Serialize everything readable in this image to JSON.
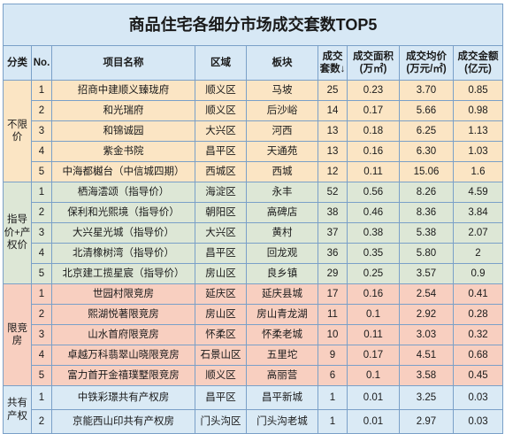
{
  "title": "商品住宅各细分市场成交套数TOP5",
  "headers": {
    "category": "分类",
    "no": "No.",
    "project": "项目名称",
    "district": "区域",
    "block": "板块",
    "units": "成交套数↓",
    "area": "成交面积(万㎡)",
    "avg_price": "成交均价(万元/㎡)",
    "amount": "成交金额(亿元)"
  },
  "groups": [
    {
      "category": "不限价",
      "rows": [
        {
          "no": "1",
          "project": "招商中建顺义臻珑府",
          "district": "顺义区",
          "block": "马坡",
          "units": "25",
          "area": "0.23",
          "avg_price": "3.70",
          "amount": "0.85"
        },
        {
          "no": "2",
          "project": "和光瑞府",
          "district": "顺义区",
          "block": "后沙峪",
          "units": "14",
          "area": "0.17",
          "avg_price": "5.66",
          "amount": "0.98"
        },
        {
          "no": "3",
          "project": "和锦诚园",
          "district": "大兴区",
          "block": "河西",
          "units": "13",
          "area": "0.18",
          "avg_price": "6.25",
          "amount": "1.13"
        },
        {
          "no": "4",
          "project": "紫金书院",
          "district": "昌平区",
          "block": "天通苑",
          "units": "13",
          "area": "0.16",
          "avg_price": "6.30",
          "amount": "1.03"
        },
        {
          "no": "5",
          "project": "中海都樾台（中信城四期）",
          "district": "西城区",
          "block": "西城",
          "units": "12",
          "area": "0.11",
          "avg_price": "15.06",
          "amount": "1.6"
        }
      ]
    },
    {
      "category": "指导价+产权价",
      "rows": [
        {
          "no": "1",
          "project": "栖海澐颂（指导价）",
          "district": "海淀区",
          "block": "永丰",
          "units": "52",
          "area": "0.56",
          "avg_price": "8.26",
          "amount": "4.59"
        },
        {
          "no": "2",
          "project": "保利和光熙境（指导价）",
          "district": "朝阳区",
          "block": "高碑店",
          "units": "38",
          "area": "0.46",
          "avg_price": "8.36",
          "amount": "3.84"
        },
        {
          "no": "3",
          "project": "大兴星光城（指导价）",
          "district": "大兴区",
          "block": "黄村",
          "units": "37",
          "area": "0.38",
          "avg_price": "5.38",
          "amount": "2.07"
        },
        {
          "no": "4",
          "project": "北清橡树湾（指导价）",
          "district": "昌平区",
          "block": "回龙观",
          "units": "36",
          "area": "0.35",
          "avg_price": "5.80",
          "amount": "2"
        },
        {
          "no": "5",
          "project": "北京建工揽星宸（指导价）",
          "district": "房山区",
          "block": "良乡镇",
          "units": "29",
          "area": "0.25",
          "avg_price": "3.57",
          "amount": "0.9"
        }
      ]
    },
    {
      "category": "限竞房",
      "rows": [
        {
          "no": "1",
          "project": "世园村限竞房",
          "district": "延庆区",
          "block": "延庆县城",
          "units": "17",
          "area": "0.16",
          "avg_price": "2.54",
          "amount": "0.41"
        },
        {
          "no": "2",
          "project": "熙湖悦著限竞房",
          "district": "房山区",
          "block": "房山青龙湖",
          "units": "11",
          "area": "0.1",
          "avg_price": "2.92",
          "amount": "0.28"
        },
        {
          "no": "3",
          "project": "山水首府限竞房",
          "district": "怀柔区",
          "block": "怀柔老城",
          "units": "10",
          "area": "0.11",
          "avg_price": "3.03",
          "amount": "0.32"
        },
        {
          "no": "4",
          "project": "卓越万科翡翠山晓限竞房",
          "district": "石景山区",
          "block": "五里坨",
          "units": "9",
          "area": "0.17",
          "avg_price": "4.51",
          "amount": "0.68"
        },
        {
          "no": "5",
          "project": "富力首开金禧璞墅限竞房",
          "district": "顺义区",
          "block": "高丽营",
          "units": "6",
          "area": "0.1",
          "avg_price": "3.58",
          "amount": "0.45"
        }
      ]
    },
    {
      "category": "共有产权",
      "rows": [
        {
          "no": "1",
          "project": "中铁彩璟共有产权房",
          "district": "昌平区",
          "block": "昌平新城",
          "units": "1",
          "area": "0.01",
          "avg_price": "3.25",
          "amount": "0.03"
        },
        {
          "no": "2",
          "project": "京能西山印共有产权房",
          "district": "门头沟区",
          "block": "门头沟老城",
          "units": "1",
          "area": "0.01",
          "avg_price": "2.97",
          "amount": "0.03"
        }
      ]
    }
  ]
}
